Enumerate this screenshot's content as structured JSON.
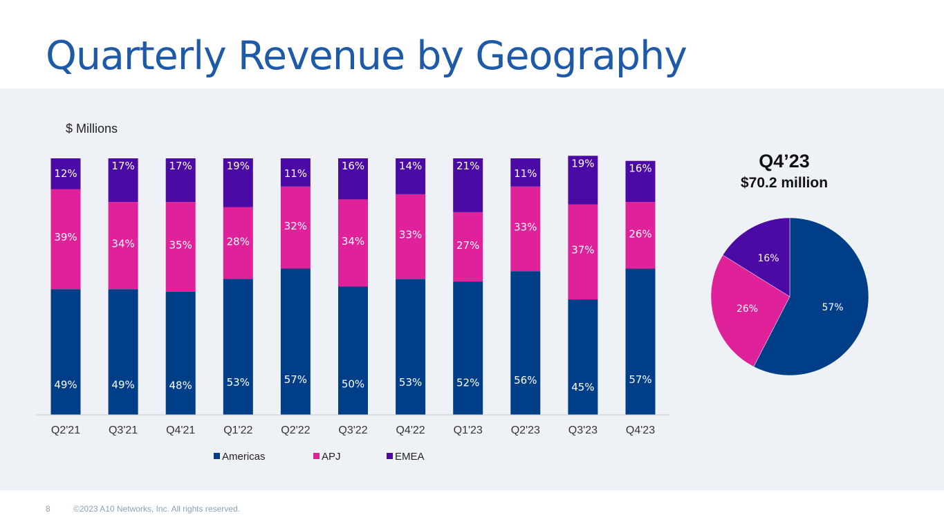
{
  "page": {
    "title": "Quarterly Revenue by Geography",
    "page_number": "8",
    "copyright": "©2023 A10 Networks, Inc. All rights reserved."
  },
  "colors": {
    "Americas": "#003f88",
    "APJ": "#e0229a",
    "EMEA": "#4a0aa3",
    "title": "#1e5aa8"
  },
  "chart_data": [
    {
      "type": "bar",
      "stacked": true,
      "percent": true,
      "unit_label": "$ Millions",
      "categories": [
        "Q2'21",
        "Q3'21",
        "Q4'21",
        "Q1'22",
        "Q2'22",
        "Q3'22",
        "Q4'22",
        "Q1'23",
        "Q2'23",
        "Q3'23",
        "Q4'23"
      ],
      "series": [
        {
          "name": "Americas",
          "values": [
            49,
            49,
            48,
            53,
            57,
            50,
            53,
            52,
            56,
            45,
            57
          ]
        },
        {
          "name": "APJ",
          "values": [
            39,
            34,
            35,
            28,
            32,
            34,
            33,
            27,
            33,
            37,
            26
          ]
        },
        {
          "name": "EMEA",
          "values": [
            12,
            17,
            17,
            19,
            11,
            16,
            14,
            21,
            11,
            19,
            16
          ]
        }
      ],
      "legend": [
        "Americas",
        "APJ",
        "EMEA"
      ],
      "legend_position": "bottom"
    },
    {
      "type": "pie",
      "title": "Q4’23",
      "subtitle": "$70.2 million",
      "slices": [
        {
          "name": "Americas",
          "value": 57
        },
        {
          "name": "APJ",
          "value": 26
        },
        {
          "name": "EMEA",
          "value": 16
        }
      ]
    }
  ]
}
